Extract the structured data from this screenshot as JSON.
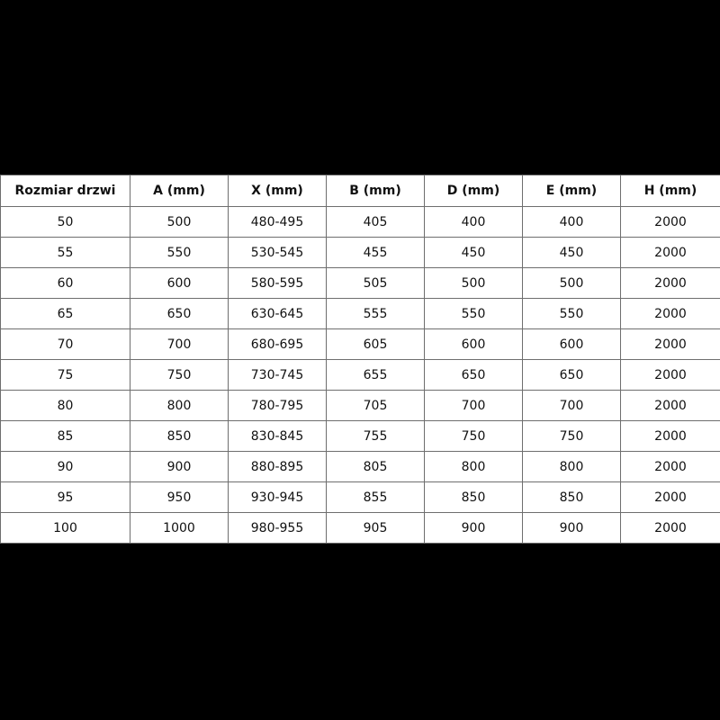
{
  "table": {
    "headers": [
      "Rozmiar drzwi",
      "A (mm)",
      "X (mm)",
      "B (mm)",
      "D (mm)",
      "E (mm)",
      "H (mm)"
    ],
    "rows": [
      [
        "50",
        "500",
        "480-495",
        "405",
        "400",
        "400",
        "2000"
      ],
      [
        "55",
        "550",
        "530-545",
        "455",
        "450",
        "450",
        "2000"
      ],
      [
        "60",
        "600",
        "580-595",
        "505",
        "500",
        "500",
        "2000"
      ],
      [
        "65",
        "650",
        "630-645",
        "555",
        "550",
        "550",
        "2000"
      ],
      [
        "70",
        "700",
        "680-695",
        "605",
        "600",
        "600",
        "2000"
      ],
      [
        "75",
        "750",
        "730-745",
        "655",
        "650",
        "650",
        "2000"
      ],
      [
        "80",
        "800",
        "780-795",
        "705",
        "700",
        "700",
        "2000"
      ],
      [
        "85",
        "850",
        "830-845",
        "755",
        "750",
        "750",
        "2000"
      ],
      [
        "90",
        "900",
        "880-895",
        "805",
        "800",
        "800",
        "2000"
      ],
      [
        "95",
        "950",
        "930-945",
        "855",
        "850",
        "850",
        "2000"
      ],
      [
        "100",
        "1000",
        "980-955",
        "905",
        "900",
        "900",
        "2000"
      ]
    ]
  }
}
